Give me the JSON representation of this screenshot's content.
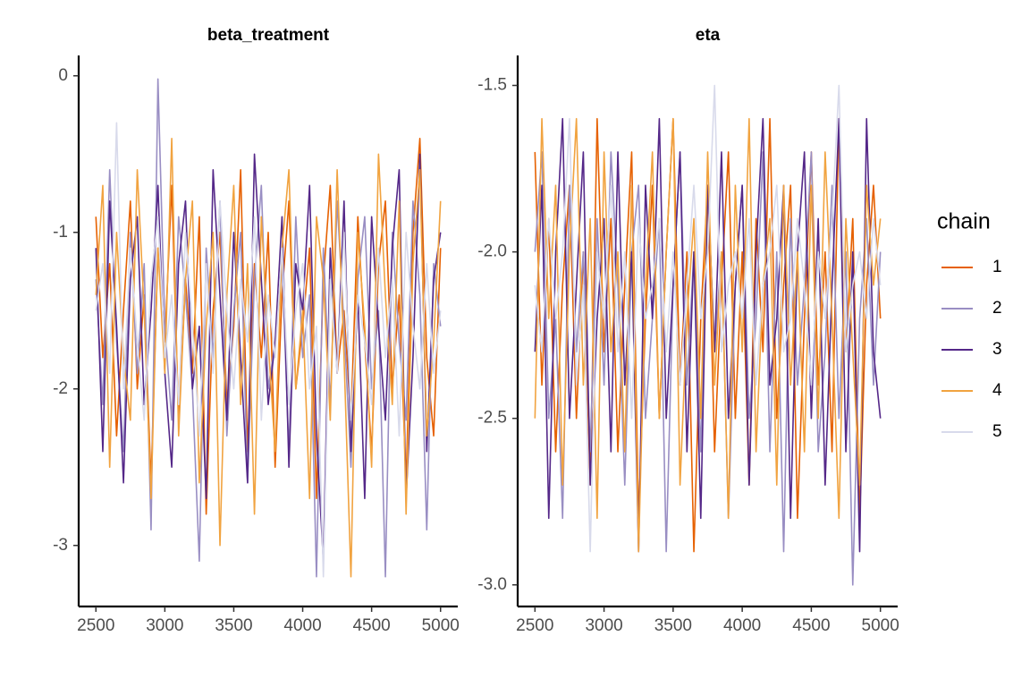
{
  "legend": {
    "title": "chain"
  },
  "chart_data": [
    {
      "type": "line",
      "title": "beta_treatment",
      "x": [
        2500,
        2550,
        2600,
        2650,
        2700,
        2750,
        2800,
        2850,
        2900,
        2950,
        3000,
        3050,
        3100,
        3150,
        3200,
        3250,
        3300,
        3350,
        3400,
        3450,
        3500,
        3550,
        3600,
        3650,
        3700,
        3750,
        3800,
        3850,
        3900,
        3950,
        4000,
        4050,
        4100,
        4150,
        4200,
        4250,
        4300,
        4350,
        4400,
        4450,
        4500,
        4550,
        4600,
        4650,
        4700,
        4750,
        4800,
        4850,
        4900,
        4950,
        5000
      ],
      "xlim": [
        2375,
        5125
      ],
      "xticks": [
        2500,
        3000,
        3500,
        4000,
        4500,
        5000
      ],
      "ylim": [
        -3.39,
        0.13
      ],
      "yticks": [
        0,
        -1,
        -2,
        -3
      ],
      "series": [
        {
          "name": "1",
          "color": "#e66101",
          "values": [
            -0.9,
            -1.8,
            -1.2,
            -2.3,
            -1.5,
            -0.8,
            -2.0,
            -1.4,
            -2.6,
            -1.1,
            -1.7,
            -0.7,
            -2.2,
            -1.3,
            -1.9,
            -0.9,
            -2.8,
            -1.5,
            -1.0,
            -2.1,
            -1.6,
            -0.6,
            -2.4,
            -1.2,
            -1.8,
            -1.0,
            -2.5,
            -1.4,
            -0.8,
            -2.0,
            -1.6,
            -1.1,
            -2.7,
            -1.3,
            -0.7,
            -1.9,
            -1.5,
            -2.2,
            -0.9,
            -1.7,
            -2.4,
            -1.2,
            -0.8,
            -2.0,
            -1.4,
            -2.6,
            -1.0,
            -0.4,
            -1.8,
            -2.3,
            -1.1
          ]
        },
        {
          "name": "2",
          "color": "#998ec3",
          "values": [
            -1.3,
            -2.1,
            -0.6,
            -1.7,
            -2.4,
            -1.0,
            -1.9,
            -1.2,
            -2.9,
            -0.02,
            -1.6,
            -2.2,
            -0.9,
            -1.4,
            -2.0,
            -3.1,
            -1.1,
            -1.8,
            -0.8,
            -2.3,
            -1.5,
            -1.0,
            -2.6,
            -1.3,
            -0.7,
            -2.0,
            -1.7,
            -1.2,
            -2.4,
            -0.9,
            -1.8,
            -1.4,
            -3.2,
            -1.1,
            -2.1,
            -0.8,
            -1.6,
            -2.5,
            -1.3,
            -0.9,
            -2.0,
            -1.5,
            -3.2,
            -1.0,
            -1.7,
            -2.2,
            -0.8,
            -1.4,
            -2.9,
            -1.2,
            -1.6
          ]
        },
        {
          "name": "3",
          "color": "#542788",
          "values": [
            -1.1,
            -2.4,
            -0.8,
            -1.6,
            -2.6,
            -1.3,
            -0.9,
            -2.1,
            -1.5,
            -0.7,
            -1.9,
            -2.5,
            -1.2,
            -0.8,
            -2.0,
            -1.6,
            -2.7,
            -0.6,
            -1.4,
            -2.2,
            -1.0,
            -1.8,
            -2.6,
            -0.5,
            -1.3,
            -2.1,
            -1.7,
            -0.9,
            -2.5,
            -1.2,
            -1.5,
            -0.7,
            -2.3,
            -3.1,
            -1.1,
            -1.9,
            -0.8,
            -2.4,
            -1.4,
            -2.7,
            -0.9,
            -1.6,
            -2.2,
            -1.1,
            -0.6,
            -2.7,
            -1.8,
            -0.5,
            -2.4,
            -1.3,
            -1.0
          ]
        },
        {
          "name": "4",
          "color": "#f1a340",
          "values": [
            -1.4,
            -0.7,
            -2.5,
            -1.0,
            -1.8,
            -2.2,
            -0.6,
            -1.5,
            -2.7,
            -1.1,
            -1.9,
            -0.4,
            -2.3,
            -1.3,
            -0.8,
            -2.6,
            -1.6,
            -1.0,
            -3.0,
            -1.4,
            -0.7,
            -2.1,
            -1.2,
            -2.8,
            -0.9,
            -1.7,
            -2.4,
            -1.1,
            -0.6,
            -2.0,
            -1.5,
            -2.7,
            -0.9,
            -1.3,
            -2.2,
            -0.6,
            -1.8,
            -3.2,
            -1.0,
            -1.6,
            -2.5,
            -0.5,
            -1.4,
            -2.1,
            -0.8,
            -2.8,
            -1.2,
            -0.6,
            -2.3,
            -1.7,
            -0.8
          ]
        },
        {
          "name": "5",
          "color": "#d8daeb",
          "values": [
            -1.5,
            -1.2,
            -1.9,
            -0.3,
            -2.0,
            -1.1,
            -1.7,
            -2.2,
            -1.3,
            -0.9,
            -1.8,
            -1.4,
            -2.1,
            -1.0,
            -1.6,
            -2.3,
            -1.2,
            -1.9,
            -0.8,
            -1.5,
            -2.0,
            -1.3,
            -1.7,
            -0.9,
            -2.2,
            -1.4,
            -1.8,
            -1.1,
            -2.1,
            -1.5,
            -1.2,
            -2.0,
            -1.6,
            -3.2,
            -1.3,
            -1.9,
            -1.0,
            -2.2,
            -1.4,
            -1.7,
            -2.1,
            -1.1,
            -1.8,
            -1.3,
            -2.3,
            -1.0,
            -1.6,
            -2.0,
            -1.2,
            -1.9,
            -1.5
          ]
        }
      ]
    },
    {
      "type": "line",
      "title": "eta",
      "x": [
        2500,
        2550,
        2600,
        2650,
        2700,
        2750,
        2800,
        2850,
        2900,
        2950,
        3000,
        3050,
        3100,
        3150,
        3200,
        3250,
        3300,
        3350,
        3400,
        3450,
        3500,
        3550,
        3600,
        3650,
        3700,
        3750,
        3800,
        3850,
        3900,
        3950,
        4000,
        4050,
        4100,
        4150,
        4200,
        4250,
        4300,
        4350,
        4400,
        4450,
        4500,
        4550,
        4600,
        4650,
        4700,
        4750,
        4800,
        4850,
        4900,
        4950,
        5000
      ],
      "xlim": [
        2375,
        5125
      ],
      "xticks": [
        2500,
        3000,
        3500,
        4000,
        4500,
        5000
      ],
      "ylim": [
        -3.065,
        -1.41
      ],
      "yticks": [
        -1.5,
        {
          "value": -2,
          "label": "-2.0"
        },
        -2.5,
        {
          "value": -3,
          "label": "-3.0"
        }
      ],
      "series": [
        {
          "name": "1",
          "color": "#e66101",
          "values": [
            -1.7,
            -2.4,
            -1.9,
            -2.6,
            -2.1,
            -1.8,
            -2.5,
            -2.0,
            -2.7,
            -1.6,
            -2.3,
            -1.9,
            -2.6,
            -2.1,
            -1.7,
            -2.8,
            -2.2,
            -1.8,
            -2.5,
            -2.0,
            -1.6,
            -2.4,
            -2.0,
            -2.9,
            -2.2,
            -1.8,
            -2.6,
            -2.1,
            -1.7,
            -2.5,
            -2.0,
            -2.7,
            -1.9,
            -2.3,
            -1.6,
            -2.5,
            -2.1,
            -1.8,
            -2.8,
            -2.2,
            -1.7,
            -2.4,
            -2.0,
            -2.6,
            -1.6,
            -2.3,
            -1.9,
            -2.8,
            -2.1,
            -1.8,
            -2.2
          ]
        },
        {
          "name": "2",
          "color": "#998ec3",
          "values": [
            -2.0,
            -1.7,
            -2.5,
            -2.2,
            -2.8,
            -1.8,
            -2.3,
            -2.0,
            -2.6,
            -1.9,
            -2.4,
            -1.7,
            -2.1,
            -2.7,
            -2.0,
            -1.8,
            -2.5,
            -2.2,
            -1.9,
            -2.9,
            -2.1,
            -1.7,
            -2.4,
            -2.0,
            -2.6,
            -1.8,
            -2.3,
            -2.0,
            -2.8,
            -2.1,
            -1.8,
            -2.5,
            -2.2,
            -1.7,
            -2.6,
            -2.0,
            -2.9,
            -1.9,
            -2.4,
            -2.1,
            -1.7,
            -2.6,
            -2.3,
            -1.8,
            -2.5,
            -2.0,
            -3.0,
            -2.2,
            -1.9,
            -2.4,
            -2.0
          ]
        },
        {
          "name": "3",
          "color": "#542788",
          "values": [
            -2.3,
            -1.8,
            -2.8,
            -2.0,
            -1.6,
            -2.5,
            -2.1,
            -1.7,
            -2.7,
            -2.2,
            -1.9,
            -2.6,
            -1.7,
            -2.4,
            -2.0,
            -2.9,
            -1.8,
            -2.2,
            -1.6,
            -2.5,
            -2.1,
            -1.7,
            -2.6,
            -2.0,
            -2.8,
            -1.8,
            -2.3,
            -1.7,
            -2.5,
            -2.1,
            -1.8,
            -2.7,
            -2.0,
            -1.6,
            -2.4,
            -2.2,
            -1.8,
            -2.8,
            -2.0,
            -1.7,
            -2.5,
            -1.9,
            -2.7,
            -2.1,
            -1.6,
            -2.6,
            -2.0,
            -2.9,
            -1.6,
            -2.3,
            -2.5
          ]
        },
        {
          "name": "4",
          "color": "#f1a340",
          "values": [
            -2.5,
            -1.6,
            -2.2,
            -1.8,
            -2.7,
            -2.0,
            -1.6,
            -2.4,
            -1.9,
            -2.8,
            -1.7,
            -2.3,
            -2.0,
            -2.6,
            -1.8,
            -2.9,
            -2.1,
            -1.7,
            -2.5,
            -2.0,
            -1.6,
            -2.7,
            -2.2,
            -1.9,
            -2.5,
            -1.7,
            -2.4,
            -2.0,
            -2.8,
            -1.8,
            -2.3,
            -1.6,
            -2.6,
            -2.1,
            -1.9,
            -2.7,
            -1.8,
            -2.4,
            -2.0,
            -2.6,
            -1.8,
            -2.5,
            -1.7,
            -2.2,
            -2.8,
            -1.9,
            -2.3,
            -2.7,
            -1.8,
            -2.1,
            -1.9
          ]
        },
        {
          "name": "5",
          "color": "#d8daeb",
          "values": [
            -2.1,
            -2.3,
            -1.9,
            -2.2,
            -2.0,
            -1.6,
            -2.4,
            -2.1,
            -2.9,
            -2.0,
            -2.2,
            -1.8,
            -2.3,
            -2.0,
            -2.5,
            -1.9,
            -2.2,
            -2.1,
            -1.9,
            -2.3,
            -2.0,
            -2.4,
            -2.1,
            -1.8,
            -2.2,
            -2.0,
            -1.5,
            -2.3,
            -2.1,
            -2.0,
            -2.2,
            -1.9,
            -2.4,
            -2.1,
            -2.0,
            -1.8,
            -2.3,
            -2.2,
            -1.9,
            -2.1,
            -2.4,
            -2.0,
            -2.2,
            -1.9,
            -1.5,
            -2.3,
            -2.1,
            -2.0,
            -2.2,
            -1.9,
            -2.1
          ]
        }
      ]
    }
  ]
}
